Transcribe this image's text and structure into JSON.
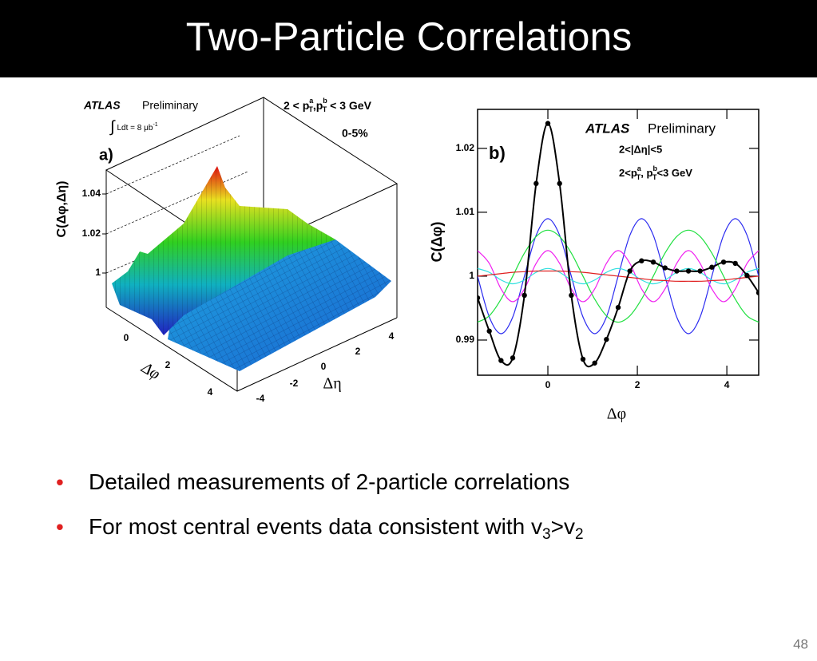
{
  "header": {
    "title": "Two-Particle Correlations"
  },
  "figure_a": {
    "atlas": "ATLAS",
    "preliminary": "Preliminary",
    "lumi_parts": [
      "∫",
      "Ldt = 8 μb",
      "-1"
    ],
    "pt_parts": [
      "2 < p",
      "a",
      "T",
      ",p",
      "b",
      "T",
      " < 3 GeV"
    ],
    "centrality": "0-5%",
    "panel": "a)",
    "ylabel": "C(Δφ,Δη)",
    "zticks": [
      "1.04",
      "1.02",
      "1"
    ],
    "phi_ticks": [
      "0",
      "2",
      "4"
    ],
    "phi_label": "Δφ",
    "eta_ticks": [
      "-4",
      "-2",
      "0",
      "2",
      "4"
    ],
    "eta_label": "Δη"
  },
  "chart_data": {
    "type": "line",
    "atlas": "ATLAS",
    "preliminary": "Preliminary",
    "eta_cut": "2<|Δη|<5",
    "pt_parts": [
      "2<p",
      "a",
      "T",
      ", p",
      "b",
      "T",
      "<3 GeV"
    ],
    "panel": "b)",
    "xlabel": "Δφ",
    "ylabel": "C(Δφ)",
    "x": [
      -1.571,
      -1.309,
      -1.047,
      -0.785,
      -0.524,
      -0.262,
      0,
      0.262,
      0.524,
      0.785,
      1.047,
      1.309,
      1.571,
      1.833,
      2.094,
      2.356,
      2.618,
      2.88,
      3.142,
      3.403,
      3.665,
      3.927,
      4.189,
      4.451,
      4.712
    ],
    "xlim": [
      -1.571,
      4.712
    ],
    "xticks": [
      0,
      2,
      4
    ],
    "ylim": [
      0.9845,
      1.0261
    ],
    "yticks": [
      0.99,
      1,
      1.01,
      1.02
    ],
    "series": [
      {
        "color": "#2b2bf0",
        "values": [
          1,
          0.9936,
          0.991,
          0.9936,
          1,
          1.0064,
          1.009,
          1.0064,
          1,
          0.9936,
          0.991,
          0.9936,
          1,
          1.0064,
          1.009,
          1.0064,
          1,
          0.9936,
          0.991,
          0.9936,
          1,
          1.0064,
          1.009,
          1.0064,
          1
        ]
      },
      {
        "color": "#20e040",
        "values": [
          0.9928,
          0.9938,
          0.9964,
          1,
          1.0036,
          1.0062,
          1.0072,
          1.0062,
          1.0036,
          1,
          0.9964,
          0.9938,
          0.9928,
          0.9938,
          0.9964,
          1,
          1.0036,
          1.0062,
          1.0072,
          1.0062,
          1.0036,
          1,
          0.9964,
          0.9938,
          0.9928
        ]
      },
      {
        "color": "#f020f0",
        "values": [
          1.004,
          1.002,
          0.998,
          0.996,
          0.998,
          1.002,
          1.004,
          1.002,
          0.998,
          0.996,
          0.998,
          1.002,
          1.004,
          1.002,
          0.998,
          0.996,
          0.998,
          1.002,
          1.004,
          1.002,
          0.998,
          0.996,
          0.998,
          1.002,
          1.004
        ]
      },
      {
        "color": "#30e0e0",
        "values": [
          1.0012,
          1.0006,
          0.9994,
          0.9988,
          0.9994,
          1.0006,
          1.0012,
          1.0006,
          0.9994,
          0.9988,
          0.9994,
          1.0006,
          1.0012,
          1.0006,
          0.9994,
          0.9988,
          0.9994,
          1.0006,
          1.0012,
          1.0006,
          0.9994,
          0.9988,
          0.9994,
          1.0006,
          1.0012
        ]
      },
      {
        "color": "#e02020",
        "values": [
          1,
          1.0002,
          1.0004,
          1.0006,
          1.0007,
          1.0008,
          1.0008,
          1.0008,
          1.0007,
          1.0006,
          1.0004,
          1.0002,
          1,
          0.9998,
          0.9996,
          0.9994,
          0.9993,
          0.9992,
          0.9992,
          0.9992,
          0.9993,
          0.9994,
          0.9996,
          0.9998,
          1
        ]
      },
      {
        "color": "#000000",
        "markers": true,
        "values": [
          0.9966,
          0.9914,
          0.9868,
          0.9872,
          0.997,
          1.0145,
          1.0239,
          1.0145,
          0.997,
          0.987,
          0.9864,
          0.9901,
          0.9951,
          1.0008,
          1.0024,
          1.0022,
          1.0013,
          1.0008,
          1.0008,
          1.0008,
          1.0014,
          1.0022,
          1.002,
          1.0001,
          0.9974
        ]
      }
    ]
  },
  "bullets": {
    "items": [
      {
        "parts": [
          "Detailed measurements of 2-particle correlations"
        ]
      },
      {
        "parts": [
          "For most central events data consistent with v",
          "3",
          ">v",
          "2"
        ]
      }
    ]
  },
  "footer": {
    "page": "48"
  }
}
